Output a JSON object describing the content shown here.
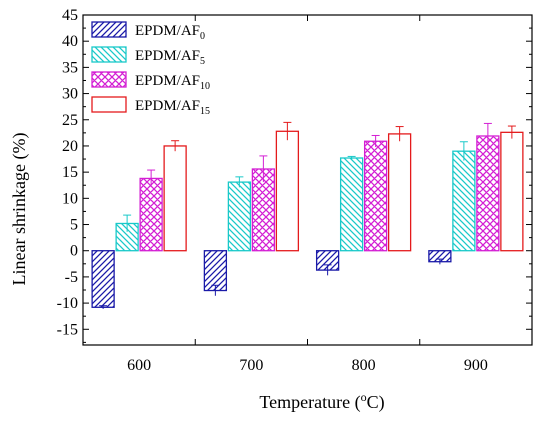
{
  "chart_data": {
    "type": "bar",
    "title": "",
    "xlabel": "Temperature (",
    "xlabel_unit_sup": "o",
    "xlabel_unit_end": "C)",
    "ylabel": "Linear shrinkage (%)",
    "ylim": [
      -18,
      45
    ],
    "yticks": [
      -15,
      -10,
      -5,
      0,
      5,
      10,
      15,
      20,
      25,
      30,
      35,
      40,
      45
    ],
    "ytick_labels": [
      "-15",
      "-10",
      "-5",
      "0",
      "5",
      "10",
      "15",
      "20",
      "25",
      "30",
      "35",
      "40",
      "45"
    ],
    "categories": [
      "600",
      "700",
      "800",
      "900"
    ],
    "legend_position": "top-left",
    "grid": false,
    "series": [
      {
        "name": "EPDM/AF",
        "sub": "0",
        "values": [
          -10.8,
          -7.6,
          -3.7,
          -2.1
        ],
        "errors": [
          0.3,
          1.0,
          1.0,
          0.5
        ],
        "color": "#1a1aa8",
        "pattern": "diag"
      },
      {
        "name": "EPDM/AF",
        "sub": "5",
        "values": [
          5.2,
          13.1,
          17.7,
          19.0
        ],
        "errors": [
          1.6,
          1.0,
          0.3,
          1.8
        ],
        "color": "#19c9c9",
        "pattern": "diag"
      },
      {
        "name": "EPDM/AF",
        "sub": "10",
        "values": [
          13.8,
          15.6,
          20.9,
          21.9
        ],
        "errors": [
          1.6,
          2.5,
          1.1,
          2.4
        ],
        "color": "#d41fd4",
        "pattern": "cross"
      },
      {
        "name": "EPDM/AF",
        "sub": "15",
        "values": [
          20.0,
          22.8,
          22.3,
          22.6
        ],
        "errors": [
          1.0,
          1.7,
          1.4,
          1.2
        ],
        "color": "#e41a1c",
        "pattern": "none"
      }
    ]
  }
}
